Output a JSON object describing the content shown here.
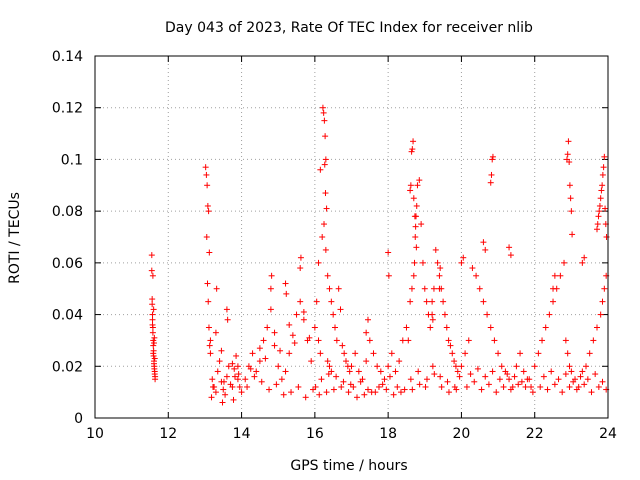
{
  "chart_data": {
    "type": "scatter",
    "title": "Day 043 of 2023, Rate Of TEC Index for receiver nlib",
    "xlabel": "GPS time / hours",
    "ylabel": "ROTI / TECUs",
    "xlim": [
      10,
      24
    ],
    "ylim": [
      0,
      0.14
    ],
    "xticks": [
      "10",
      "12",
      "14",
      "16",
      "18",
      "20",
      "22",
      "24"
    ],
    "yticks": [
      "0",
      "0.02",
      "0.04",
      "0.06",
      "0.08",
      "0.1",
      "0.12",
      "0.14"
    ],
    "grid": true,
    "marker": "plus",
    "marker_color": "#ff0000",
    "series": [
      {
        "x": [
          11.55,
          11.55,
          11.56,
          11.56,
          11.57,
          11.57,
          11.58,
          11.58,
          11.59,
          11.59,
          11.6,
          11.6,
          11.61,
          11.61,
          11.62,
          11.62,
          11.63,
          11.63,
          11.64,
          11.64,
          11.58,
          11.6,
          11.62,
          11.59,
          11.57,
          11.61,
          11.63,
          13.02,
          13.04,
          13.06,
          13.08,
          13.1,
          13.12,
          13.05,
          13.07,
          13.09,
          13.11,
          13.13,
          13.15,
          13.2,
          13.25,
          13.3,
          13.35,
          13.4,
          13.45,
          13.5,
          13.55,
          13.6,
          13.65,
          13.7,
          13.75,
          13.8,
          13.85,
          13.9,
          13.95,
          14.0,
          13.3,
          13.32,
          13.6,
          13.62,
          13.9,
          13.92,
          13.15,
          13.45,
          13.75,
          13.18,
          13.48,
          13.78,
          13.22,
          13.52,
          13.82,
          14.1,
          14.2,
          14.3,
          14.4,
          14.5,
          14.6,
          14.7,
          14.8,
          14.9,
          15.0,
          15.1,
          15.2,
          15.3,
          15.4,
          15.5,
          15.6,
          15.7,
          15.8,
          15.9,
          14.15,
          14.35,
          14.55,
          14.75,
          14.95,
          15.15,
          15.35,
          15.55,
          15.75,
          15.95,
          14.8,
          14.82,
          15.2,
          15.22,
          15.6,
          15.62,
          14.5,
          14.9,
          15.3,
          15.7,
          14.25,
          14.65,
          15.05,
          15.45,
          15.85,
          16.0,
          16.05,
          16.1,
          16.15,
          16.2,
          16.25,
          16.3,
          16.35,
          16.4,
          16.45,
          16.5,
          16.55,
          16.6,
          16.65,
          16.7,
          16.75,
          16.8,
          16.85,
          16.9,
          16.95,
          16.22,
          16.24,
          16.26,
          16.28,
          16.3,
          16.27,
          16.29,
          16.32,
          16.1,
          16.15,
          16.35,
          16.4,
          16.45,
          16.02,
          16.18,
          16.38,
          16.58,
          16.78,
          16.98,
          16.12,
          16.32,
          16.52,
          16.72,
          16.92,
          17.0,
          17.1,
          17.2,
          17.3,
          17.4,
          17.5,
          17.6,
          17.7,
          17.8,
          17.9,
          18.0,
          18.1,
          18.2,
          18.3,
          18.4,
          18.5,
          17.05,
          17.25,
          17.45,
          17.65,
          17.85,
          18.05,
          18.25,
          18.45,
          17.15,
          17.35,
          17.55,
          17.75,
          17.95,
          18.15,
          18.35,
          17.4,
          17.45,
          18.0,
          18.02,
          18.6,
          18.65,
          18.7,
          18.72,
          18.74,
          18.76,
          18.78,
          18.8,
          18.85,
          18.9,
          18.95,
          19.0,
          19.05,
          19.1,
          19.15,
          19.2,
          19.25,
          19.3,
          19.35,
          19.4,
          19.45,
          19.5,
          19.55,
          19.6,
          19.65,
          19.7,
          19.75,
          19.8,
          19.85,
          19.9,
          19.95,
          18.55,
          18.6,
          18.62,
          18.64,
          18.66,
          18.68,
          18.7,
          18.73,
          18.75,
          18.77,
          19.2,
          19.22,
          19.4,
          19.42,
          18.62,
          18.82,
          19.02,
          19.22,
          19.42,
          19.62,
          19.82,
          18.66,
          18.86,
          19.06,
          19.26,
          19.46,
          19.66,
          19.86,
          20.0,
          20.1,
          20.2,
          20.3,
          20.4,
          20.5,
          20.6,
          20.7,
          20.8,
          20.9,
          21.0,
          21.1,
          21.2,
          21.3,
          21.4,
          21.5,
          21.6,
          21.7,
          21.8,
          21.9,
          20.8,
          20.82,
          20.84,
          20.86,
          20.0,
          20.05,
          20.6,
          20.65,
          21.3,
          21.35,
          20.15,
          20.35,
          20.55,
          20.75,
          20.95,
          21.15,
          21.35,
          21.55,
          21.75,
          21.95,
          20.25,
          20.45,
          20.65,
          20.85,
          21.05,
          21.25,
          21.45,
          21.65,
          21.85,
          22.0,
          22.1,
          22.2,
          22.3,
          22.4,
          22.5,
          22.6,
          22.7,
          22.8,
          22.85,
          22.9,
          22.95,
          23.0,
          23.1,
          23.2,
          23.3,
          23.4,
          23.5,
          23.6,
          23.7,
          23.8,
          23.85,
          23.9,
          23.95,
          22.88,
          22.9,
          22.92,
          22.94,
          22.96,
          22.98,
          23.0,
          23.02,
          23.7,
          23.72,
          23.74,
          23.76,
          23.78,
          23.8,
          23.82,
          23.84,
          23.86,
          23.88,
          23.9,
          23.92,
          23.94,
          23.96,
          22.5,
          22.55,
          23.3,
          23.35,
          22.15,
          22.35,
          22.55,
          22.75,
          22.95,
          23.15,
          23.35,
          23.55,
          23.75,
          23.95,
          22.25,
          22.45,
          22.65,
          22.85,
          23.05,
          23.25,
          23.45,
          23.65,
          23.85
        ],
        "y": [
          0.063,
          0.057,
          0.046,
          0.044,
          0.04,
          0.038,
          0.035,
          0.033,
          0.03,
          0.028,
          0.026,
          0.024,
          0.022,
          0.021,
          0.02,
          0.019,
          0.018,
          0.017,
          0.016,
          0.015,
          0.055,
          0.042,
          0.031,
          0.025,
          0.036,
          0.029,
          0.023,
          0.097,
          0.094,
          0.09,
          0.082,
          0.08,
          0.064,
          0.07,
          0.052,
          0.045,
          0.035,
          0.028,
          0.025,
          0.015,
          0.012,
          0.01,
          0.018,
          0.022,
          0.014,
          0.011,
          0.009,
          0.016,
          0.02,
          0.013,
          0.012,
          0.019,
          0.024,
          0.015,
          0.012,
          0.01,
          0.033,
          0.05,
          0.042,
          0.038,
          0.02,
          0.017,
          0.03,
          0.026,
          0.021,
          0.008,
          0.006,
          0.007,
          0.012,
          0.014,
          0.016,
          0.015,
          0.02,
          0.025,
          0.018,
          0.022,
          0.03,
          0.035,
          0.042,
          0.028,
          0.02,
          0.015,
          0.018,
          0.025,
          0.032,
          0.04,
          0.045,
          0.038,
          0.03,
          0.022,
          0.012,
          0.016,
          0.014,
          0.011,
          0.013,
          0.009,
          0.01,
          0.012,
          0.008,
          0.011,
          0.05,
          0.055,
          0.052,
          0.048,
          0.058,
          0.062,
          0.027,
          0.033,
          0.036,
          0.041,
          0.019,
          0.023,
          0.026,
          0.029,
          0.031,
          0.035,
          0.045,
          0.06,
          0.096,
          0.07,
          0.075,
          0.065,
          0.055,
          0.05,
          0.045,
          0.04,
          0.035,
          0.03,
          0.05,
          0.042,
          0.028,
          0.025,
          0.022,
          0.02,
          0.018,
          0.12,
          0.118,
          0.115,
          0.109,
          0.1,
          0.098,
          0.087,
          0.081,
          0.03,
          0.025,
          0.022,
          0.02,
          0.018,
          0.012,
          0.015,
          0.017,
          0.016,
          0.014,
          0.013,
          0.009,
          0.01,
          0.011,
          0.012,
          0.01,
          0.02,
          0.025,
          0.018,
          0.015,
          0.022,
          0.03,
          0.025,
          0.02,
          0.018,
          0.015,
          0.02,
          0.025,
          0.018,
          0.022,
          0.03,
          0.035,
          0.012,
          0.014,
          0.011,
          0.01,
          0.013,
          0.016,
          0.012,
          0.011,
          0.008,
          0.009,
          0.01,
          0.012,
          0.011,
          0.009,
          0.01,
          0.033,
          0.038,
          0.064,
          0.055,
          0.045,
          0.05,
          0.055,
          0.06,
          0.07,
          0.078,
          0.082,
          0.09,
          0.092,
          0.075,
          0.06,
          0.05,
          0.045,
          0.04,
          0.035,
          0.045,
          0.05,
          0.065,
          0.06,
          0.055,
          0.05,
          0.045,
          0.04,
          0.035,
          0.03,
          0.028,
          0.025,
          0.022,
          0.02,
          0.018,
          0.016,
          0.03,
          0.088,
          0.09,
          0.103,
          0.104,
          0.107,
          0.085,
          0.078,
          0.074,
          0.066,
          0.04,
          0.038,
          0.05,
          0.058,
          0.015,
          0.018,
          0.012,
          0.02,
          0.016,
          0.014,
          0.012,
          0.011,
          0.013,
          0.015,
          0.017,
          0.012,
          0.01,
          0.011,
          0.02,
          0.025,
          0.03,
          0.058,
          0.055,
          0.05,
          0.045,
          0.04,
          0.035,
          0.03,
          0.025,
          0.02,
          0.018,
          0.015,
          0.012,
          0.02,
          0.025,
          0.018,
          0.015,
          0.012,
          0.091,
          0.094,
          0.1,
          0.101,
          0.06,
          0.062,
          0.068,
          0.065,
          0.066,
          0.063,
          0.012,
          0.014,
          0.011,
          0.013,
          0.01,
          0.012,
          0.011,
          0.013,
          0.012,
          0.01,
          0.017,
          0.019,
          0.016,
          0.018,
          0.015,
          0.017,
          0.016,
          0.014,
          0.015,
          0.02,
          0.025,
          0.03,
          0.035,
          0.04,
          0.045,
          0.05,
          0.055,
          0.06,
          0.03,
          0.025,
          0.02,
          0.018,
          0.015,
          0.012,
          0.018,
          0.02,
          0.025,
          0.03,
          0.035,
          0.04,
          0.045,
          0.05,
          0.055,
          0.1,
          0.102,
          0.107,
          0.099,
          0.09,
          0.085,
          0.08,
          0.071,
          0.073,
          0.075,
          0.078,
          0.08,
          0.082,
          0.085,
          0.088,
          0.09,
          0.094,
          0.097,
          0.101,
          0.081,
          0.075,
          0.07,
          0.05,
          0.055,
          0.06,
          0.062,
          0.012,
          0.011,
          0.013,
          0.01,
          0.012,
          0.011,
          0.013,
          0.01,
          0.012,
          0.011,
          0.016,
          0.018,
          0.015,
          0.017,
          0.014,
          0.016,
          0.015,
          0.017,
          0.014
        ]
      }
    ]
  }
}
